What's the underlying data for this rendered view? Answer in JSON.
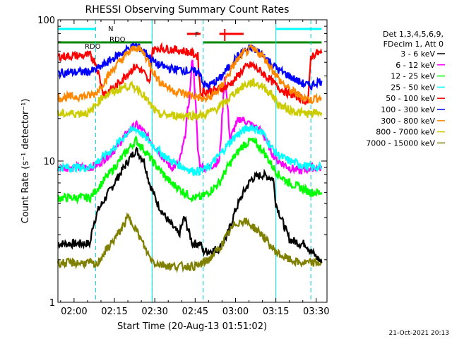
{
  "chart_data": {
    "type": "line",
    "title": "RHESSI Observing Summary Count Rates",
    "xlabel": "Start Time (20-Aug-13 01:51:02)",
    "ylabel": "Count Rate (s⁻¹ detector⁻¹)",
    "yscale": "log",
    "ylim": [
      1,
      100
    ],
    "xlim_minutes": [
      -6,
      94
    ],
    "x_tick_labels": [
      "02:00",
      "02:15",
      "02:30",
      "02:45",
      "03:00",
      "03:15",
      "03:30"
    ],
    "x_tick_minutes": [
      0,
      15,
      30,
      45,
      60,
      75,
      90
    ],
    "y_tick_labels": [
      "1",
      "10",
      "100"
    ],
    "y_tick_values": [
      1,
      10,
      100
    ],
    "legend_header": [
      "Det 1,3,4,5,6,9,",
      "FDecim 1, Att 0"
    ],
    "series": [
      {
        "name": "3 - 6 keV",
        "color": "#000000",
        "x": [
          -6,
          6,
          7,
          9,
          15,
          20,
          23,
          26,
          28,
          31,
          34,
          39,
          41,
          44,
          47,
          48,
          50,
          54,
          57,
          60,
          63,
          66,
          70,
          74,
          75,
          78,
          80,
          84,
          86,
          88,
          89,
          91,
          92
        ],
        "y": [
          2.6,
          2.6,
          3.5,
          4.5,
          7,
          10,
          12,
          10,
          7,
          5,
          4,
          3,
          4,
          2.6,
          2.6,
          2.3,
          2.3,
          2.4,
          3,
          4.5,
          6,
          7.5,
          8,
          7.5,
          5,
          3.5,
          2.8,
          2.6,
          2.6,
          2.3,
          2.2,
          2,
          1.9
        ]
      },
      {
        "name": "6 - 12 keV",
        "color": "#ff00ff",
        "x": [
          -6,
          6,
          9,
          15,
          20,
          23,
          26,
          31,
          36,
          39,
          41,
          43,
          44,
          45,
          46,
          47,
          50,
          54,
          55,
          56,
          57,
          58,
          59,
          60,
          62,
          66,
          70,
          74,
          76,
          80,
          84,
          88,
          91,
          92
        ],
        "y": [
          9,
          9,
          9.5,
          12,
          16,
          18,
          16,
          12,
          9,
          9.5,
          14,
          30,
          55,
          30,
          12,
          9,
          9,
          10,
          20,
          40,
          25,
          14,
          16,
          18,
          20,
          18,
          16,
          11,
          10,
          9,
          8.5,
          9,
          9,
          9
        ]
      },
      {
        "name": "12 - 25 keV",
        "color": "#00ff00",
        "x": [
          -6,
          6,
          9,
          15,
          20,
          23,
          26,
          31,
          36,
          41,
          44,
          47,
          50,
          54,
          57,
          60,
          63,
          66,
          70,
          74,
          76,
          80,
          84,
          88,
          91,
          92
        ],
        "y": [
          5.5,
          5.5,
          6.5,
          9,
          12,
          14,
          12,
          9,
          7,
          6,
          5.5,
          5.5,
          6,
          7,
          9,
          11,
          13,
          14,
          12,
          9,
          8,
          7,
          6.5,
          6,
          6,
          6
        ]
      },
      {
        "name": "25 - 50 keV",
        "color": "#00ffff",
        "x": [
          -6,
          6,
          9,
          15,
          20,
          23,
          26,
          31,
          36,
          41,
          44,
          47,
          50,
          54,
          57,
          60,
          63,
          66,
          70,
          74,
          76,
          80,
          84,
          88,
          91,
          92
        ],
        "y": [
          9,
          9,
          10,
          12.5,
          16,
          17,
          15,
          12,
          10,
          9,
          8.5,
          8.5,
          9,
          11,
          13,
          15,
          16.5,
          17.5,
          16,
          12,
          11,
          10,
          9.5,
          9,
          9,
          9
        ]
      },
      {
        "name": "50 - 100 keV",
        "color": "#ff0000",
        "x": [
          -6,
          6,
          8,
          11,
          15,
          20,
          23,
          26,
          28,
          29,
          31,
          36,
          41,
          44,
          46,
          47,
          48,
          54,
          57,
          60,
          63,
          66,
          70,
          74,
          76,
          80,
          84,
          87,
          88,
          90,
          92
        ],
        "y": [
          55,
          56,
          50,
          30,
          33,
          42,
          47,
          42,
          35,
          60,
          63,
          62,
          60,
          58,
          55,
          30,
          31,
          32,
          34,
          38,
          45,
          48,
          42,
          36,
          33,
          30,
          28,
          26,
          55,
          58,
          58
        ]
      },
      {
        "name": "100 - 300 keV",
        "color": "#0000ff",
        "x": [
          -6,
          6,
          8,
          11,
          15,
          20,
          23,
          26,
          29,
          31,
          36,
          41,
          44,
          47,
          48,
          50,
          54,
          57,
          60,
          63,
          66,
          70,
          74,
          76,
          80,
          84,
          88,
          90,
          92
        ],
        "y": [
          42,
          43,
          44,
          48,
          54,
          62,
          66,
          60,
          52,
          48,
          45,
          44,
          43,
          42,
          35,
          34,
          38,
          45,
          53,
          60,
          63,
          57,
          48,
          44,
          40,
          36,
          34,
          36,
          37
        ]
      },
      {
        "name": "300 - 800 keV",
        "color": "#ff8800",
        "x": [
          -6,
          6,
          8,
          11,
          15,
          20,
          23,
          26,
          29,
          31,
          36,
          41,
          44,
          47,
          48,
          50,
          54,
          57,
          60,
          63,
          66,
          70,
          74,
          76,
          80,
          84,
          88,
          90,
          92
        ],
        "y": [
          28,
          29,
          30,
          36,
          46,
          58,
          64,
          58,
          45,
          38,
          32,
          30,
          29,
          28,
          27,
          28,
          32,
          40,
          50,
          58,
          62,
          56,
          44,
          38,
          32,
          29,
          27,
          28,
          28
        ]
      },
      {
        "name": "800 - 7000 keV",
        "color": "#cccc00",
        "x": [
          -6,
          6,
          8,
          11,
          15,
          18,
          20,
          23,
          25,
          27,
          29,
          31,
          36,
          41,
          44,
          47,
          48,
          50,
          54,
          57,
          60,
          63,
          66,
          70,
          74,
          76,
          80,
          84,
          88,
          90,
          92
        ],
        "y": [
          21.5,
          22,
          25,
          29,
          31,
          33,
          34,
          33,
          31,
          27,
          24,
          21.5,
          21,
          21,
          21,
          21,
          21,
          22,
          24,
          27,
          31,
          34,
          36,
          34,
          29,
          25,
          23,
          22,
          21.5,
          22,
          22
        ]
      },
      {
        "name": "7000 - 15000 keV",
        "color": "#808000",
        "x": [
          -6,
          6,
          8,
          11,
          15,
          18,
          20,
          22,
          24,
          26,
          28,
          30,
          36,
          42,
          46,
          48,
          50,
          54,
          57,
          60,
          63,
          66,
          70,
          73,
          76,
          80,
          84,
          88,
          91,
          92
        ],
        "y": [
          1.9,
          1.9,
          1.8,
          2.2,
          2.8,
          3.4,
          4,
          3.6,
          3,
          2.5,
          2.1,
          1.9,
          1.8,
          1.8,
          1.8,
          1.9,
          2,
          2.4,
          3,
          3.6,
          3.8,
          3.5,
          3,
          2.5,
          2.2,
          2,
          1.9,
          1.9,
          1.9,
          1.9
        ]
      }
    ],
    "annotations": {
      "flag_lines": [
        {
          "label": "N",
          "color": "#00ffff",
          "segments": [
            [
              -6,
              8
            ],
            [
              75,
              92
            ]
          ]
        },
        {
          "label": "RDO",
          "color": "#008800",
          "segments": [
            [
              -6,
              29
            ],
            [
              48,
              92
            ]
          ]
        },
        {
          "label": "F",
          "color": "#ff0000",
          "segments": [
            [
              42,
              47
            ],
            [
              54,
              63
            ]
          ]
        }
      ],
      "rdo_labels": [
        "RDO",
        "RDO"
      ],
      "saa_markers_minutes": [
        8,
        29,
        48,
        88
      ]
    },
    "footer_timestamp": "21-Oct-2021 20:13"
  }
}
